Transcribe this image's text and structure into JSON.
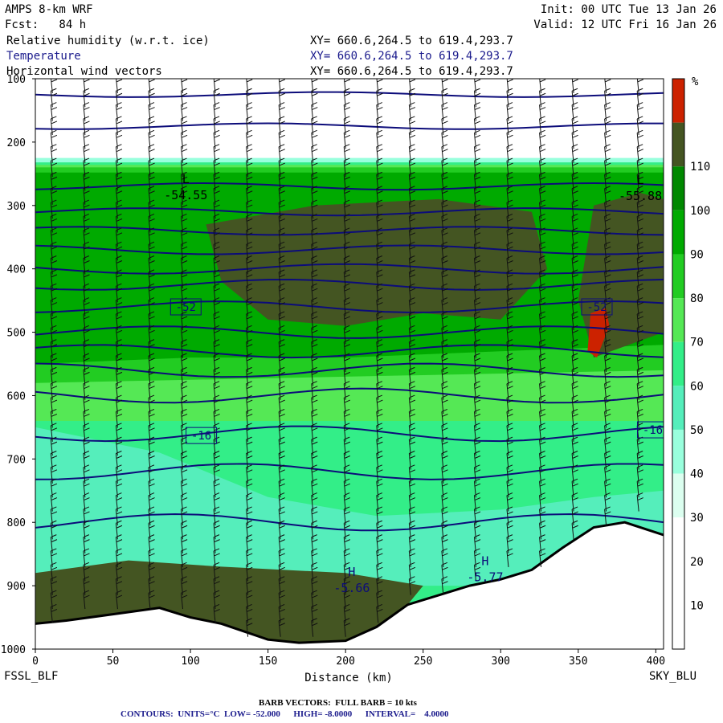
{
  "header": {
    "model": "AMPS 8-km WRF",
    "init": "Init: 00 UTC Tue 13 Jan 26",
    "fcst": "Fcst:   84 h",
    "valid": "Valid: 12 UTC Fri 16 Jan 26",
    "fields": [
      {
        "label": "Relative humidity (w.r.t. ice)",
        "xy": "XY= 660.6,264.5 to 619.4,293.7"
      },
      {
        "label": "Temperature",
        "xy": "XY= 660.6,264.5 to 619.4,293.7"
      },
      {
        "label": "Horizontal wind vectors",
        "xy": "XY= 660.6,264.5 to 619.4,293.7"
      }
    ]
  },
  "footer": {
    "left_station": "FSSL_BLF",
    "right_station": "SKY_BLU",
    "barb": "BARB VECTORS:  FULL BARB = 10 kts",
    "contours": "CONTOURS:  UNITS=°C  LOW= -52.000      HIGH= -8.0000      INTERVAL=    4.0000"
  },
  "colors": {
    "contour": "#0c0c7a",
    "rh": [
      "#ffffff",
      "#ffffff",
      "#ffffff",
      "#dcfff0",
      "#99ffdd",
      "#55eebb",
      "#33ee88",
      "#55e855",
      "#22cc22",
      "#00aa00",
      "#008800",
      "#445522",
      "#cc2200"
    ]
  },
  "chart_data": {
    "type": "contour-cross-section",
    "xlabel": "Distance (km)",
    "ylabel": "",
    "xlim": [
      0,
      405
    ],
    "ylim": [
      1000,
      100
    ],
    "x_ticks": [
      0,
      50,
      100,
      150,
      200,
      250,
      300,
      350,
      400
    ],
    "y_ticks": [
      100,
      200,
      300,
      400,
      500,
      600,
      700,
      800,
      900,
      1000
    ],
    "colorbar": {
      "unit": "%",
      "levels": [
        10,
        20,
        30,
        40,
        50,
        60,
        70,
        80,
        90,
        100,
        110
      ]
    },
    "contour_labels": [
      {
        "text": "-52",
        "x": 97,
        "p": 460
      },
      {
        "text": "-52",
        "x": 362,
        "p": 460
      },
      {
        "text": "-16",
        "x": 107,
        "p": 663
      },
      {
        "text": "-16",
        "x": 398,
        "p": 654
      }
    ],
    "extrema": [
      {
        "type": "L",
        "value": "-54.55",
        "x": 97,
        "p": 280
      },
      {
        "type": "L",
        "value": "-55.88",
        "x": 390,
        "p": 281
      },
      {
        "type": "H",
        "value": "-5.66",
        "x": 204,
        "p": 900
      },
      {
        "type": "H",
        "value": "-5.77",
        "x": 290,
        "p": 883
      }
    ],
    "terrain_top_p": [
      [
        0,
        960
      ],
      [
        20,
        955
      ],
      [
        50,
        945
      ],
      [
        80,
        935
      ],
      [
        100,
        950
      ],
      [
        120,
        960
      ],
      [
        150,
        985
      ],
      [
        170,
        990
      ],
      [
        200,
        987
      ],
      [
        220,
        965
      ],
      [
        240,
        930
      ],
      [
        260,
        915
      ],
      [
        280,
        900
      ],
      [
        300,
        890
      ],
      [
        320,
        875
      ],
      [
        340,
        840
      ],
      [
        360,
        808
      ],
      [
        380,
        800
      ],
      [
        405,
        820
      ]
    ]
  }
}
